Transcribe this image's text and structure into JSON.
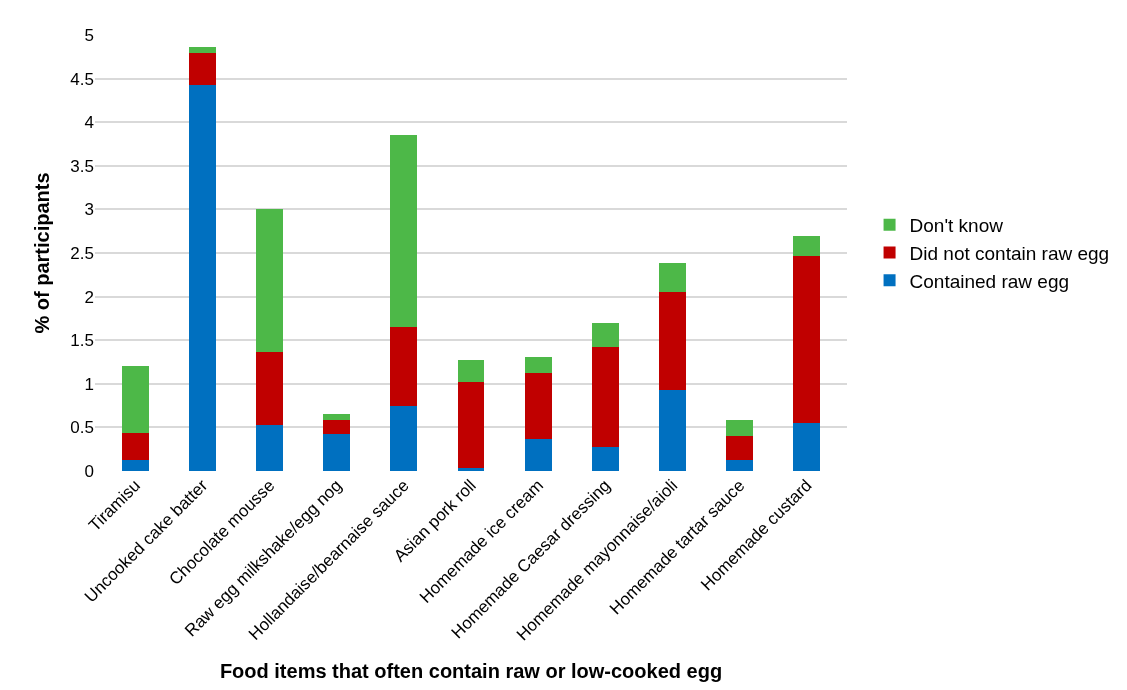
{
  "chart_data": {
    "type": "bar",
    "stacked": true,
    "xlabel": "Food items that often contain raw or low-cooked egg",
    "ylabel": "% of participants",
    "categories": [
      "Tiramisu",
      "Uncooked cake batter",
      "Chocolate mousse",
      "Raw egg milkshake/egg nog",
      "Hollandaise/bearnaise sauce",
      "Asian pork roll",
      "Homemade ice cream",
      "Homemade Caesar dressing",
      "Homemade mayonnaise/aioli",
      "Homemade tartar sauce",
      "Homemade custard"
    ],
    "series": [
      {
        "name": "Contained raw egg",
        "color": "#0070c0",
        "values": [
          0.13,
          4.43,
          0.53,
          0.43,
          0.74,
          0.03,
          0.37,
          0.28,
          0.93,
          0.13,
          0.55
        ]
      },
      {
        "name": "Did not contain raw egg",
        "color": "#c00000",
        "values": [
          0.31,
          0.36,
          0.84,
          0.15,
          0.91,
          0.99,
          0.75,
          1.14,
          1.12,
          0.27,
          1.92
        ]
      },
      {
        "name": "Don't know",
        "color": "#4db848",
        "values": [
          0.76,
          0.07,
          1.64,
          0.07,
          2.2,
          0.25,
          0.19,
          0.28,
          0.33,
          0.18,
          0.23
        ]
      }
    ],
    "ylim": [
      0,
      5
    ],
    "yticks": [
      0,
      0.5,
      1,
      1.5,
      2,
      2.5,
      3,
      3.5,
      4,
      4.5,
      5
    ],
    "grid": "y",
    "legend": "right"
  }
}
